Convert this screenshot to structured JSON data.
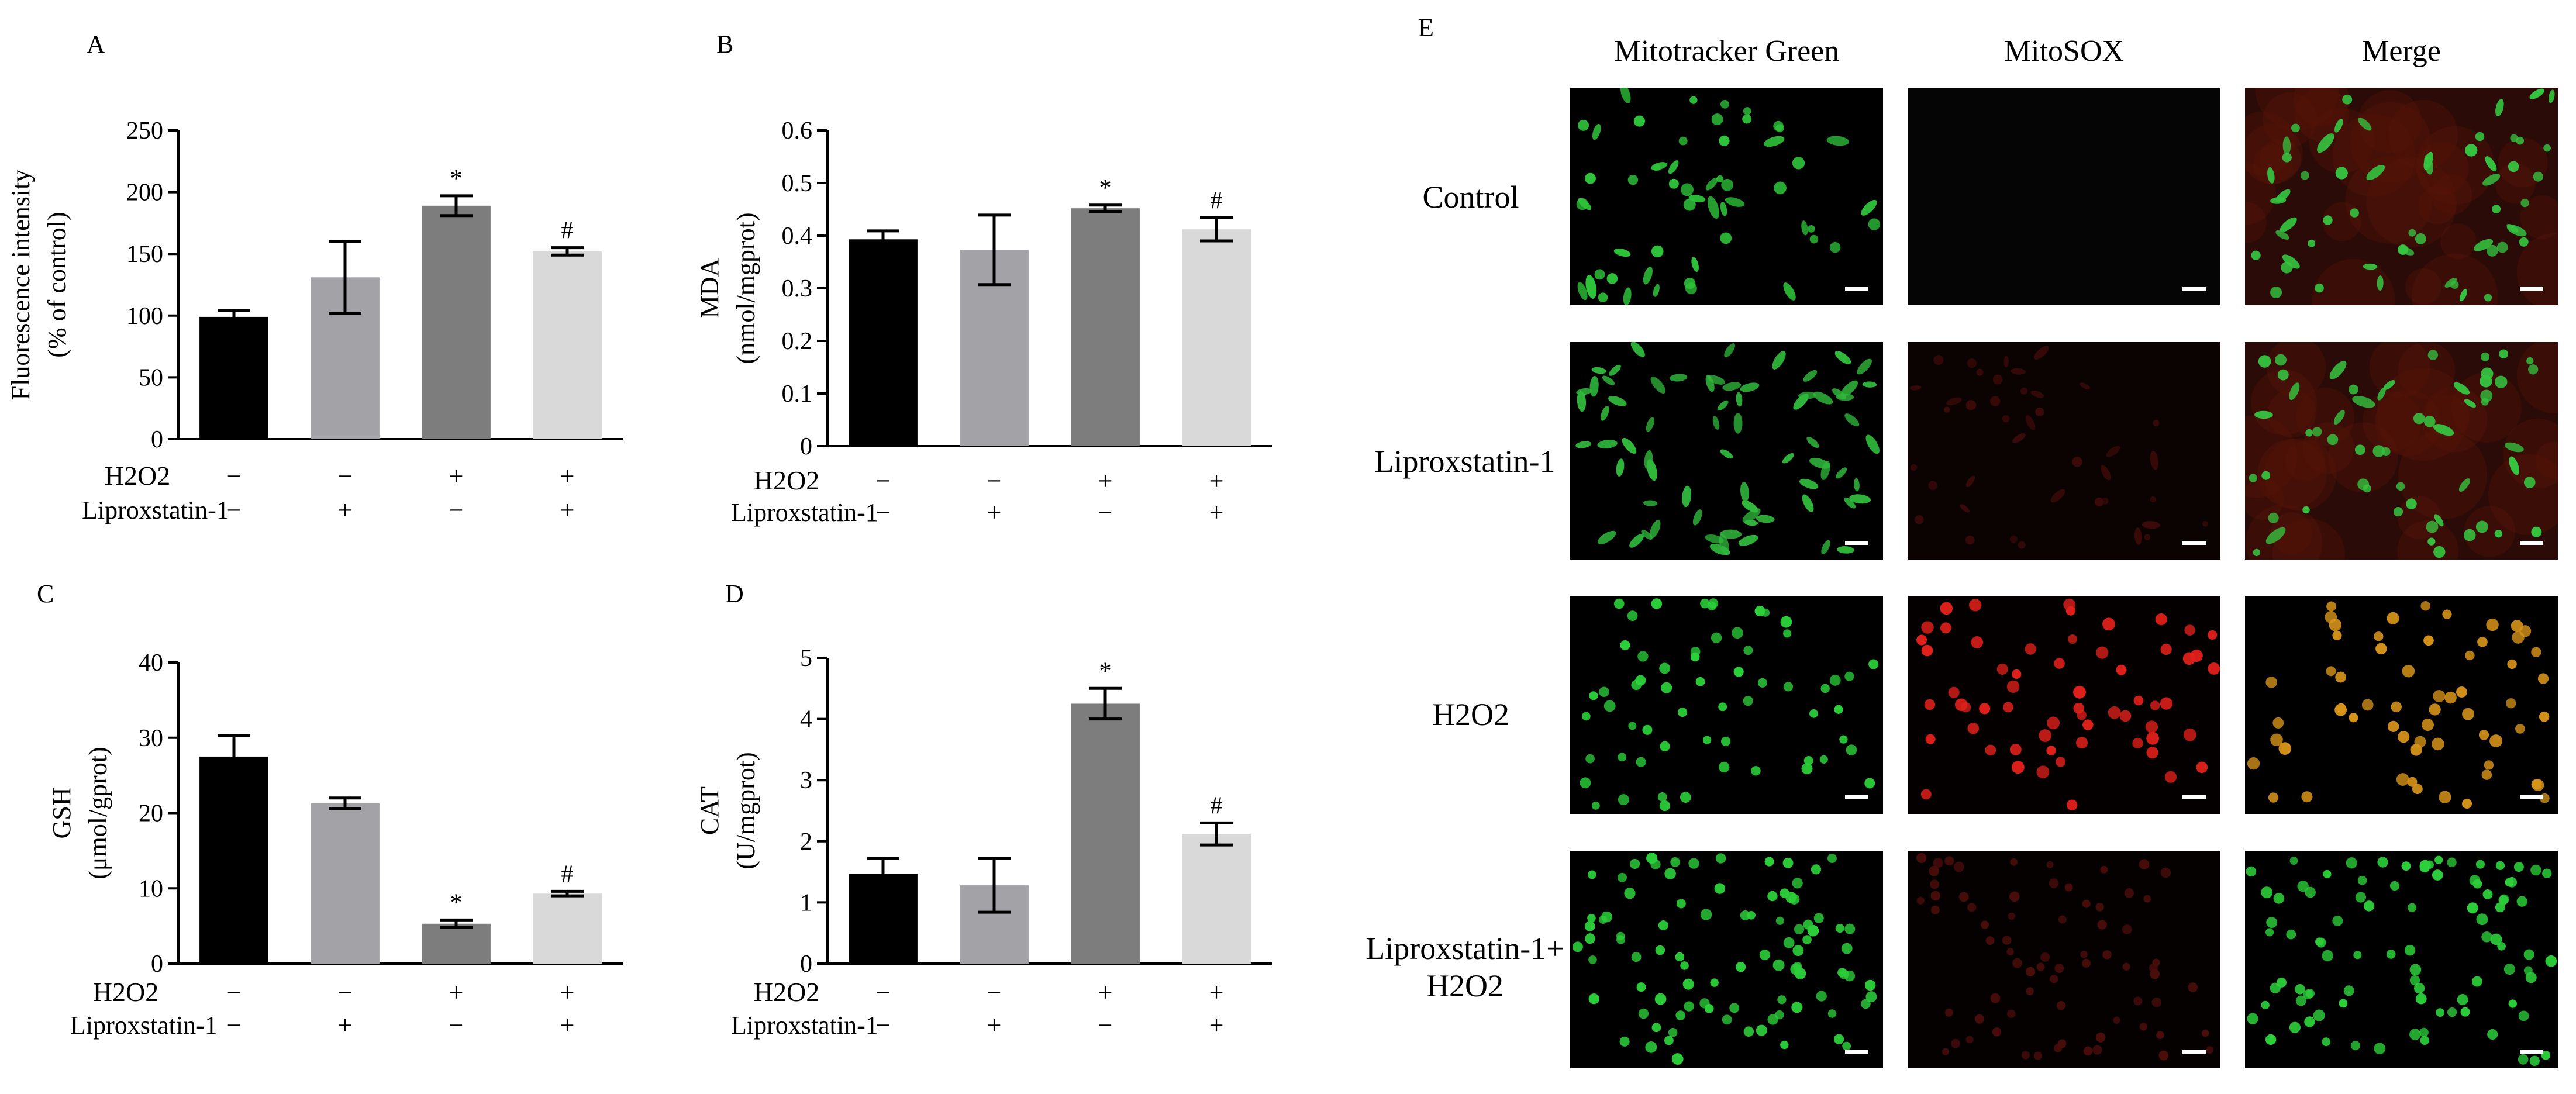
{
  "charts": [
    {
      "panel": "A",
      "type": "bar",
      "ylabel": [
        "Fluorescence intensity",
        "(% of control)"
      ],
      "ylim": [
        0,
        250
      ],
      "yticks": [
        0,
        50,
        100,
        150,
        200,
        250
      ],
      "values": [
        99,
        131,
        189,
        152
      ],
      "errors": [
        5,
        29,
        8,
        3
      ],
      "annotations": [
        "",
        "",
        "*",
        "#"
      ],
      "row_labels": [
        "H2O2",
        "Liproxstatin-1"
      ],
      "row_values": [
        [
          "−",
          "−",
          "+",
          "+"
        ],
        [
          "−",
          "+",
          "−",
          "+"
        ]
      ]
    },
    {
      "panel": "B",
      "type": "bar",
      "ylabel": [
        "MDA",
        "(nmol/mgprot)"
      ],
      "ylim": [
        0,
        0.6
      ],
      "yticks": [
        0,
        0.1,
        0.2,
        0.3,
        0.4,
        0.5,
        0.6
      ],
      "values": [
        0.393,
        0.373,
        0.452,
        0.412
      ],
      "errors": [
        0.016,
        0.066,
        0.006,
        0.022
      ],
      "annotations": [
        "",
        "",
        "*",
        "#"
      ],
      "row_labels": [
        "H2O2",
        "Liproxstatin-1"
      ],
      "row_values": [
        [
          "−",
          "−",
          "+",
          "+"
        ],
        [
          "−",
          "+",
          "−",
          "+"
        ]
      ]
    },
    {
      "panel": "C",
      "type": "bar",
      "ylabel": [
        "GSH",
        "(μmol/gprot)"
      ],
      "ylim": [
        0,
        40
      ],
      "yticks": [
        0,
        10,
        20,
        30,
        40
      ],
      "values": [
        27.5,
        21.3,
        5.3,
        9.3
      ],
      "errors": [
        2.8,
        0.7,
        0.5,
        0.3
      ],
      "annotations": [
        "",
        "",
        "*",
        "#"
      ],
      "row_labels": [
        "H2O2",
        "Liproxstatin-1"
      ],
      "row_values": [
        [
          "−",
          "−",
          "+",
          "+"
        ],
        [
          "−",
          "+",
          "−",
          "+"
        ]
      ]
    },
    {
      "panel": "D",
      "type": "bar",
      "ylabel": [
        "CAT",
        "(U/mgprot)"
      ],
      "ylim": [
        0,
        5
      ],
      "yticks": [
        0,
        1,
        2,
        3,
        4,
        5
      ],
      "values": [
        1.47,
        1.28,
        4.25,
        2.12
      ],
      "errors": [
        0.25,
        0.44,
        0.25,
        0.18
      ],
      "annotations": [
        "",
        "",
        "*",
        "#"
      ],
      "row_labels": [
        "H2O2",
        "Liproxstatin-1"
      ],
      "row_values": [
        [
          "−",
          "−",
          "+",
          "+"
        ],
        [
          "−",
          "+",
          "−",
          "+"
        ]
      ]
    }
  ],
  "chart_colors": [
    "#000000",
    "#a3a3a7",
    "#7d7d7d",
    "#d9d9d9"
  ],
  "panel_e": {
    "letter": "E",
    "columns": [
      "Mitotracker Green",
      "MitoSOX",
      "Merge"
    ],
    "rows": [
      {
        "label": [
          "Control"
        ],
        "images": [
          "green-sparse",
          "dark-empty",
          "green-on-red-haze"
        ]
      },
      {
        "label": [
          "Liproxstatin-1"
        ],
        "images": [
          "green-elongated",
          "faint-red",
          "green-on-red-haze"
        ]
      },
      {
        "label": [
          "H2O2"
        ],
        "images": [
          "green-round",
          "red-round",
          "orange-round"
        ]
      },
      {
        "label": [
          "Liproxstatin-1+",
          "H2O2"
        ],
        "images": [
          "green-round-dense",
          "faint-red-round",
          "green-round-dense"
        ]
      }
    ]
  }
}
